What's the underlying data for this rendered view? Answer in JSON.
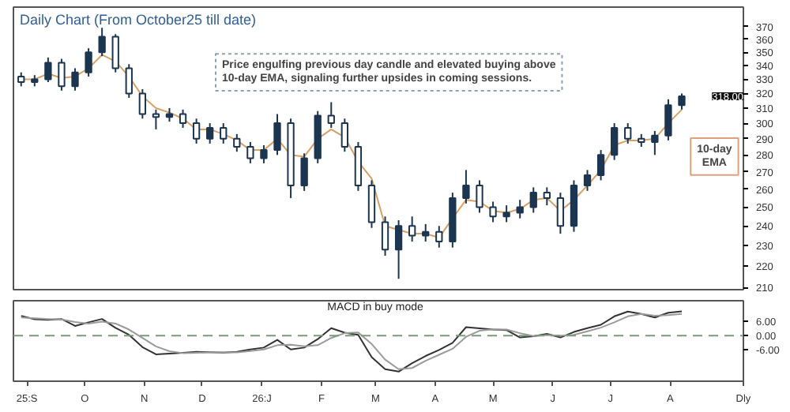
{
  "chart_data": [
    {
      "type": "candlestick",
      "title": "Daily Chart (From October25 till date)",
      "log": true,
      "grid": false,
      "tick_labels": "y",
      "color": "#1c3550",
      "x": [
        "2025-08-29",
        "2025-09-05",
        "2025-09-12",
        "2025-09-19",
        "2025-09-26",
        "2025-10-03",
        "2025-10-10",
        "2025-10-17",
        "2025-10-24",
        "2025-10-31",
        "2025-11-07",
        "2025-11-14",
        "2025-11-21",
        "2025-11-28",
        "2025-12-05",
        "2025-12-12",
        "2025-12-19",
        "2025-12-26",
        "2026-01-02",
        "2026-01-09",
        "2026-01-16",
        "2026-01-23",
        "2026-01-30",
        "2026-02-06",
        "2026-02-13",
        "2026-02-20",
        "2026-02-27",
        "2026-03-06",
        "2026-03-13",
        "2026-03-20",
        "2026-03-27",
        "2026-04-03",
        "2026-04-10",
        "2026-04-17",
        "2026-04-24",
        "2026-05-01",
        "2026-05-08",
        "2026-05-15",
        "2026-05-22",
        "2026-05-29",
        "2026-06-05",
        "2026-06-12",
        "2026-06-19",
        "2026-06-26",
        "2026-07-03",
        "2026-07-10",
        "2026-07-17",
        "2026-07-24",
        "2026-07-31",
        "2026-08-07"
      ],
      "ohlc": [
        [
          332,
          335,
          325,
          328
        ],
        [
          328,
          333,
          325,
          330
        ],
        [
          330,
          346,
          328,
          342
        ],
        [
          342,
          345,
          322,
          325
        ],
        [
          325,
          338,
          322,
          335
        ],
        [
          335,
          353,
          332,
          350
        ],
        [
          350,
          369,
          347,
          362
        ],
        [
          362,
          364,
          335,
          338
        ],
        [
          338,
          341,
          317,
          320
        ],
        [
          320,
          323,
          303,
          306
        ],
        [
          306,
          309,
          296,
          304
        ],
        [
          304,
          310,
          301,
          306
        ],
        [
          306,
          309,
          297,
          300
        ],
        [
          300,
          303,
          287,
          290
        ],
        [
          290,
          300,
          287,
          297
        ],
        [
          297,
          300,
          287,
          290
        ],
        [
          290,
          293,
          282,
          285
        ],
        [
          285,
          288,
          275,
          278
        ],
        [
          278,
          286,
          275,
          283
        ],
        [
          283,
          306,
          280,
          300
        ],
        [
          300,
          303,
          255,
          262
        ],
        [
          262,
          281,
          259,
          278
        ],
        [
          278,
          308,
          275,
          305
        ],
        [
          305,
          314,
          297,
          300
        ],
        [
          300,
          303,
          282,
          285
        ],
        [
          285,
          288,
          259,
          262
        ],
        [
          262,
          265,
          239,
          242
        ],
        [
          242,
          245,
          225,
          228
        ],
        [
          228,
          243,
          214,
          240
        ],
        [
          240,
          245,
          232,
          235
        ],
        [
          235,
          241,
          232,
          237
        ],
        [
          237,
          240,
          229,
          232
        ],
        [
          232,
          258,
          229,
          255
        ],
        [
          255,
          271,
          252,
          262
        ],
        [
          262,
          265,
          247,
          250
        ],
        [
          250,
          253,
          242,
          245
        ],
        [
          245,
          251,
          242,
          247
        ],
        [
          247,
          254,
          244,
          250
        ],
        [
          250,
          261,
          247,
          258
        ],
        [
          258,
          261,
          251,
          255
        ],
        [
          255,
          258,
          236,
          240
        ],
        [
          240,
          265,
          237,
          262
        ],
        [
          262,
          271,
          259,
          268
        ],
        [
          268,
          283,
          265,
          280
        ],
        [
          280,
          300,
          277,
          297
        ],
        [
          297,
          300,
          287,
          290
        ],
        [
          290,
          293,
          285,
          288
        ],
        [
          288,
          295,
          280,
          292
        ],
        [
          292,
          316,
          289,
          312
        ],
        [
          312,
          320,
          309,
          318
        ]
      ],
      "series": [
        {
          "type": "line",
          "color": "#d9a066",
          "values": [
            330,
            330,
            334,
            331,
            332,
            338,
            348,
            343,
            332,
            318,
            310,
            307,
            303,
            296,
            296,
            293,
            289,
            283,
            283,
            290,
            280,
            279,
            290,
            296,
            291,
            276,
            266,
            240,
            238,
            236,
            236,
            234,
            244,
            254,
            253,
            248,
            247,
            249,
            254,
            255,
            248,
            254,
            262,
            271,
            286,
            289,
            289,
            290,
            300,
            309
          ]
        }
      ],
      "xlim": [
        "2025-08-25",
        "2026-09-08"
      ],
      "xticks": [
        {
          "value": "2025-09-01",
          "label": "25:S"
        },
        {
          "value": "2025-10-01",
          "label": "O"
        },
        {
          "value": "2025-11-01",
          "label": "N"
        },
        {
          "value": "2025-12-01",
          "label": "D"
        },
        {
          "value": "2026-01-01",
          "label": "26:J"
        },
        {
          "value": "2026-02-01",
          "label": "F"
        },
        {
          "value": "2026-03-01",
          "label": "M"
        },
        {
          "value": "2026-04-01",
          "label": "A"
        },
        {
          "value": "2026-05-01",
          "label": "M"
        },
        {
          "value": "2026-06-01",
          "label": "J"
        },
        {
          "value": "2026-07-01",
          "label": "J"
        },
        {
          "value": "2026-08-01",
          "label": "A"
        }
      ],
      "ylim": [
        209,
        386
      ],
      "yticks": [
        210,
        220,
        230,
        240,
        250,
        260,
        270,
        280,
        290,
        300,
        310,
        320,
        330,
        340,
        350,
        360,
        370
      ],
      "annotations": [
        "Price engulfing previous day candle and elevated buying above 10-day EMA, signaling further upsides in coming sessions.",
        {
          "text": "10-day EMA",
          "x": "2026-08-24",
          "y": 279
        },
        "318.00"
      ]
    },
    {
      "type": "line",
      "grid": false,
      "x": [
        "2025-08-29",
        "2025-09-05",
        "2025-09-12",
        "2025-09-19",
        "2025-09-26",
        "2025-10-03",
        "2025-10-10",
        "2025-10-17",
        "2025-10-24",
        "2025-10-31",
        "2025-11-07",
        "2025-11-14",
        "2025-11-21",
        "2025-11-28",
        "2025-12-05",
        "2025-12-12",
        "2025-12-19",
        "2025-12-26",
        "2026-01-02",
        "2026-01-09",
        "2026-01-16",
        "2026-01-23",
        "2026-01-30",
        "2026-02-06",
        "2026-02-13",
        "2026-02-20",
        "2026-02-27",
        "2026-03-06",
        "2026-03-13",
        "2026-03-20",
        "2026-03-27",
        "2026-04-03",
        "2026-04-10",
        "2026-04-17",
        "2026-04-24",
        "2026-05-01",
        "2026-05-08",
        "2026-05-15",
        "2026-05-22",
        "2026-05-29",
        "2026-06-05",
        "2026-06-12",
        "2026-06-19",
        "2026-06-26",
        "2026-07-03",
        "2026-07-10",
        "2026-07-17",
        "2026-07-24",
        "2026-07-31",
        "2026-08-07"
      ],
      "series": [
        {
          "color": "#333333",
          "values": [
            8.2,
            6.8,
            6.5,
            6.9,
            4.0,
            5.5,
            6.9,
            3.2,
            0.3,
            -4.8,
            -7.8,
            -7.5,
            -7.2,
            -6.8,
            -6.9,
            -7.1,
            -6.8,
            -5.8,
            -5.0,
            -1.8,
            -5.8,
            -5.0,
            -1.5,
            3.1,
            1.2,
            0.3,
            -9.0,
            -14.0,
            -15.0,
            -11.5,
            -8.5,
            -6.0,
            -3.0,
            3.5,
            3.0,
            2.5,
            2.3,
            -0.8,
            -0.3,
            0.7,
            -0.8,
            1.5,
            3.1,
            4.5,
            8.0,
            10.0,
            9.0,
            7.5,
            9.5,
            10.1
          ]
        },
        {
          "color": "#9a9a9a",
          "values": [
            7.5,
            7.2,
            6.9,
            6.7,
            5.6,
            5.0,
            5.8,
            5.0,
            2.5,
            -1.0,
            -4.5,
            -6.5,
            -7.3,
            -7.2,
            -7.0,
            -7.0,
            -7.0,
            -6.4,
            -5.8,
            -4.0,
            -3.8,
            -4.5,
            -4.0,
            -1.0,
            1.0,
            1.3,
            -3.5,
            -10.0,
            -14.0,
            -13.5,
            -10.5,
            -8.0,
            -5.5,
            -0.5,
            2.0,
            2.6,
            2.5,
            1.0,
            -0.2,
            0.2,
            0.0,
            0.3,
            1.8,
            3.3,
            5.5,
            8.0,
            9.0,
            8.3,
            8.5,
            9.0
          ]
        }
      ],
      "xlim": [
        "2025-08-25",
        "2026-09-08"
      ],
      "xticks": [
        {
          "value": "2025-09-01",
          "label": "25:S"
        },
        {
          "value": "2025-10-01",
          "label": "O"
        },
        {
          "value": "2025-11-01",
          "label": "N"
        },
        {
          "value": "2025-12-01",
          "label": "D"
        },
        {
          "value": "2026-01-01",
          "label": "26:J"
        },
        {
          "value": "2026-02-01",
          "label": "F"
        },
        {
          "value": "2026-03-01",
          "label": "M"
        },
        {
          "value": "2026-04-01",
          "label": "A"
        },
        {
          "value": "2026-05-01",
          "label": "M"
        },
        {
          "value": "2026-06-01",
          "label": "J"
        },
        {
          "value": "2026-07-01",
          "label": "J"
        },
        {
          "value": "2026-08-01",
          "label": "A"
        }
      ],
      "ylim": [
        -19,
        14.5
      ],
      "yticks": [
        {
          "value": -6,
          "label": "-6.00"
        },
        {
          "value": 0,
          "label": "0.00"
        },
        {
          "value": 6,
          "label": "6.00"
        }
      ],
      "ref_lines": [
        {
          "axis": "y",
          "value": 0,
          "color": "#7a9a7a",
          "line_style": "dashed"
        }
      ],
      "annotations": [
        "MACD  in buy mode",
        "Dly"
      ]
    }
  ]
}
